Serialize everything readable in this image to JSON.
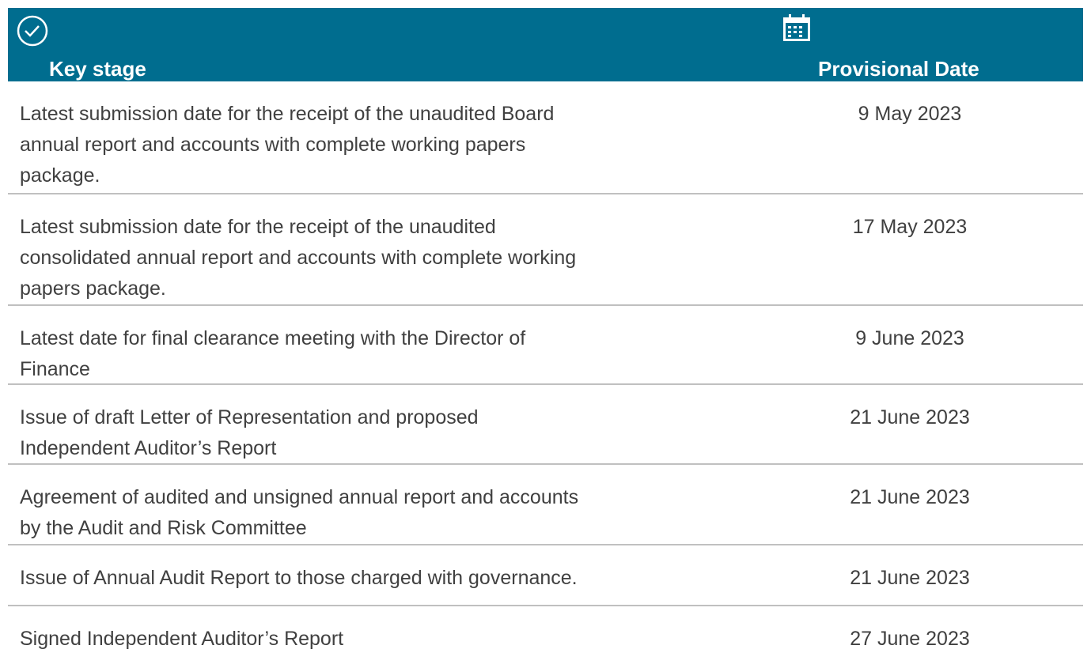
{
  "table": {
    "header": [
      "Key stage",
      "Provisional Date"
    ],
    "rows": [
      {
        "stage": [
          "Latest submission date for the receipt of the unaudited Board",
          "annual report and accounts with complete working papers",
          "package."
        ],
        "date": "9 May 2023"
      },
      {
        "stage": [
          "Latest submission date for the receipt of the unaudited",
          "consolidated annual report and accounts with complete working",
          "papers package."
        ],
        "date": "17 May 2023"
      },
      {
        "stage": [
          "Latest date for final clearance meeting with the Director of",
          "Finance"
        ],
        "date": "9 June 2023"
      },
      {
        "stage": [
          "Issue of draft Letter of Representation and proposed",
          "Independent Auditor’s Report"
        ],
        "date": "21 June 2023"
      },
      {
        "stage": [
          "Agreement of audited and unsigned annual report and accounts",
          "by the Audit and Risk Committee"
        ],
        "date": "21 June 2023"
      },
      {
        "stage": [
          "Issue of Annual Audit Report to those charged with governance."
        ],
        "date": "21 June 2023"
      },
      {
        "stage": [
          "Signed Independent Auditor’s Report"
        ],
        "date": "27 June 2023"
      }
    ]
  }
}
